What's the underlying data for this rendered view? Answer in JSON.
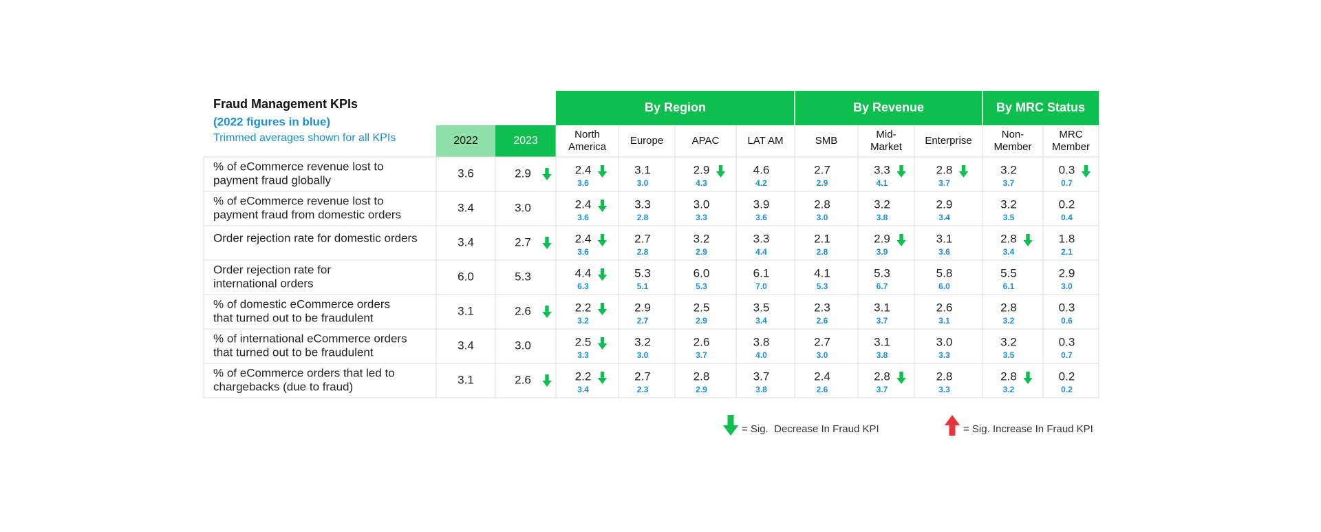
{
  "header": {
    "title": "Fraud Management KPIs",
    "subtitle": "(2022 figures in blue)",
    "note": "Trimmed averages shown for all KPIs"
  },
  "years": [
    "2022",
    "2023"
  ],
  "groups": [
    {
      "name": "By Region",
      "columns": [
        [
          "North",
          "America"
        ],
        [
          "Europe"
        ],
        [
          "APAC"
        ],
        [
          "LAT AM"
        ]
      ]
    },
    {
      "name": "By Revenue",
      "columns": [
        [
          "SMB"
        ],
        [
          "Mid-",
          "Market"
        ],
        [
          "Enterprise"
        ]
      ]
    },
    {
      "name": "By MRC Status",
      "columns": [
        [
          "Non-",
          "Member"
        ],
        [
          "MRC",
          "Member"
        ]
      ]
    }
  ],
  "rows": [
    {
      "label": [
        "% of eCommerce revenue lost to",
        "payment fraud globally"
      ],
      "y2022": "3.6",
      "y2023": {
        "value": "2.9",
        "decrease": true
      },
      "cells": [
        {
          "value": "2.4",
          "prior": "3.6",
          "decrease": true
        },
        {
          "value": "3.1",
          "prior": "3.0"
        },
        {
          "value": "2.9",
          "prior": "4.3",
          "decrease": true
        },
        {
          "value": "4.6",
          "prior": "4.2"
        },
        {
          "value": "2.7",
          "prior": "2.9"
        },
        {
          "value": "3.3",
          "prior": "4.1",
          "decrease": true
        },
        {
          "value": "2.8",
          "prior": "3.7",
          "decrease": true
        },
        {
          "value": "3.2",
          "prior": "3.7"
        },
        {
          "value": "0.3",
          "prior": "0.7",
          "decrease": true
        }
      ]
    },
    {
      "label": [
        "% of eCommerce revenue lost to",
        "payment fraud from domestic orders"
      ],
      "y2022": "3.4",
      "y2023": {
        "value": "3.0"
      },
      "cells": [
        {
          "value": "2.4",
          "prior": "3.6",
          "decrease": true
        },
        {
          "value": "3.3",
          "prior": "2.8"
        },
        {
          "value": "3.0",
          "prior": "3.3"
        },
        {
          "value": "3.9",
          "prior": "3.6"
        },
        {
          "value": "2.8",
          "prior": "3.0"
        },
        {
          "value": "3.2",
          "prior": "3.8"
        },
        {
          "value": "2.9",
          "prior": "3.4"
        },
        {
          "value": "3.2",
          "prior": "3.5"
        },
        {
          "value": "0.2",
          "prior": "0.4"
        }
      ]
    },
    {
      "label": [
        "Order rejection rate for domestic orders"
      ],
      "y2022": "3.4",
      "y2023": {
        "value": "2.7",
        "decrease": true
      },
      "cells": [
        {
          "value": "2.4",
          "prior": "3.6",
          "decrease": true
        },
        {
          "value": "2.7",
          "prior": "2.8"
        },
        {
          "value": "3.2",
          "prior": "2.9"
        },
        {
          "value": "3.3",
          "prior": "4.4"
        },
        {
          "value": "2.1",
          "prior": "2.8"
        },
        {
          "value": "2.9",
          "prior": "3.9",
          "decrease": true
        },
        {
          "value": "3.1",
          "prior": "3.6"
        },
        {
          "value": "2.8",
          "prior": "3.4",
          "decrease": true
        },
        {
          "value": "1.8",
          "prior": "2.1"
        }
      ]
    },
    {
      "label": [
        "Order rejection rate for",
        "international orders"
      ],
      "y2022": "6.0",
      "y2023": {
        "value": "5.3"
      },
      "cells": [
        {
          "value": "4.4",
          "prior": "6.3",
          "decrease": true
        },
        {
          "value": "5.3",
          "prior": "5.1"
        },
        {
          "value": "6.0",
          "prior": "5.3"
        },
        {
          "value": "6.1",
          "prior": "7.0"
        },
        {
          "value": "4.1",
          "prior": "5.3"
        },
        {
          "value": "5.3",
          "prior": "6.7"
        },
        {
          "value": "5.8",
          "prior": "6.0"
        },
        {
          "value": "5.5",
          "prior": "6.1"
        },
        {
          "value": "2.9",
          "prior": "3.0"
        }
      ]
    },
    {
      "label": [
        "% of domestic eCommerce orders",
        "that turned out to be fraudulent"
      ],
      "y2022": "3.1",
      "y2023": {
        "value": "2.6",
        "decrease": true
      },
      "cells": [
        {
          "value": "2.2",
          "prior": "3.2",
          "decrease": true
        },
        {
          "value": "2.9",
          "prior": "2.7"
        },
        {
          "value": "2.5",
          "prior": "2.9"
        },
        {
          "value": "3.5",
          "prior": "3.4"
        },
        {
          "value": "2.3",
          "prior": "2.6"
        },
        {
          "value": "3.1",
          "prior": "3.7"
        },
        {
          "value": "2.6",
          "prior": "3.1"
        },
        {
          "value": "2.8",
          "prior": "3.2"
        },
        {
          "value": "0.3",
          "prior": "0.6"
        }
      ]
    },
    {
      "label": [
        "% of international eCommerce orders",
        "that turned out to be fraudulent"
      ],
      "y2022": "3.4",
      "y2023": {
        "value": "3.0"
      },
      "cells": [
        {
          "value": "2.5",
          "prior": "3.3",
          "decrease": true
        },
        {
          "value": "3.2",
          "prior": "3.0"
        },
        {
          "value": "2.6",
          "prior": "3.7"
        },
        {
          "value": "3.8",
          "prior": "4.0"
        },
        {
          "value": "2.7",
          "prior": "3.0"
        },
        {
          "value": "3.1",
          "prior": "3.8"
        },
        {
          "value": "3.0",
          "prior": "3.3"
        },
        {
          "value": "3.2",
          "prior": "3.5"
        },
        {
          "value": "0.3",
          "prior": "0.7"
        }
      ]
    },
    {
      "label": [
        "% of eCommerce orders that led to",
        "chargebacks (due to fraud)"
      ],
      "y2022": "3.1",
      "y2023": {
        "value": "2.6",
        "decrease": true
      },
      "cells": [
        {
          "value": "2.2",
          "prior": "3.4",
          "decrease": true
        },
        {
          "value": "2.7",
          "prior": "2.3"
        },
        {
          "value": "2.8",
          "prior": "2.9"
        },
        {
          "value": "3.7",
          "prior": "3.8"
        },
        {
          "value": "2.4",
          "prior": "2.6"
        },
        {
          "value": "2.8",
          "prior": "3.7",
          "decrease": true
        },
        {
          "value": "2.8",
          "prior": "3.3"
        },
        {
          "value": "2.8",
          "prior": "3.2",
          "decrease": true
        },
        {
          "value": "0.2",
          "prior": "0.2"
        }
      ]
    }
  ],
  "legend": [
    {
      "direction": "down",
      "color": "#0dbf4f",
      "text": "= Sig.  Decrease In Fraud KPI"
    },
    {
      "direction": "up",
      "color": "#e8323c",
      "text": "= Sig. Increase In Fraud KPI"
    }
  ]
}
